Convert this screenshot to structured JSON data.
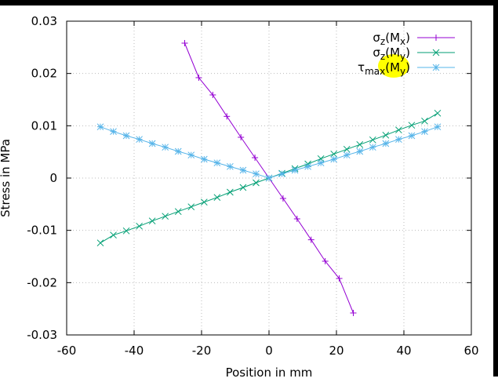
{
  "chart_data": {
    "type": "line",
    "title": "",
    "xlabel": "Position in mm",
    "ylabel": "Stress in MPa",
    "xlim": [
      -60,
      60
    ],
    "ylim": [
      -0.03,
      0.03
    ],
    "xticks": [
      -60,
      -40,
      -20,
      0,
      20,
      40,
      60
    ],
    "xtick_labels": [
      "-60",
      "-40",
      "-20",
      "0",
      "20",
      "40",
      "60"
    ],
    "yticks": [
      -0.03,
      -0.02,
      -0.01,
      0,
      0.01,
      0.02,
      0.03
    ],
    "ytick_labels": [
      "-0.03",
      "-0.02",
      "-0.01",
      "0",
      "0.01",
      "0.02",
      "0.03"
    ],
    "grid": true,
    "legend_position": "top-right",
    "series": [
      {
        "name": "σz(Mx)",
        "label_main": "σ",
        "label_sub1": "z",
        "label_mid": "(M",
        "label_sub2": "x",
        "label_end": ")",
        "color": "#9400d3",
        "marker": "plus",
        "x": [
          -25,
          -20.83,
          -16.67,
          -12.5,
          -8.33,
          -4.17,
          0,
          4.17,
          8.33,
          12.5,
          16.67,
          20.83,
          25
        ],
        "y": [
          0.0258,
          0.0192,
          0.0159,
          0.0118,
          0.0078,
          0.0039,
          0,
          -0.0039,
          -0.0078,
          -0.0118,
          -0.0159,
          -0.0192,
          -0.0258
        ]
      },
      {
        "name": "σz(My)",
        "label_main": "σ",
        "label_sub1": "z",
        "label_mid": "(M",
        "label_sub2": "y",
        "label_end": ")",
        "color": "#009e73",
        "marker": "cross",
        "x": [
          -50,
          -46.15,
          -42.31,
          -38.46,
          -34.62,
          -30.77,
          -26.92,
          -23.08,
          -19.23,
          -15.38,
          -11.54,
          -7.69,
          -3.85,
          0,
          3.85,
          7.69,
          11.54,
          15.38,
          19.23,
          23.08,
          26.92,
          30.77,
          34.62,
          38.46,
          42.31,
          46.15,
          50
        ],
        "y": [
          -0.0124,
          -0.0109,
          -0.0101,
          -0.0092,
          -0.0082,
          -0.0073,
          -0.0064,
          -0.0055,
          -0.0046,
          -0.0037,
          -0.0027,
          -0.0018,
          -0.0009,
          0,
          0.0009,
          0.0018,
          0.0027,
          0.0037,
          0.0046,
          0.0055,
          0.0064,
          0.0073,
          0.0082,
          0.0092,
          0.0101,
          0.0109,
          0.0124
        ]
      },
      {
        "name": "τmax(My)",
        "label_main": "τ",
        "label_sub1": "max",
        "label_mid": "(M",
        "label_sub2": "y",
        "label_end": ")",
        "color": "#56b4e9",
        "marker": "star",
        "x": [
          -50,
          -46.15,
          -42.31,
          -38.46,
          -34.62,
          -30.77,
          -26.92,
          -23.08,
          -19.23,
          -15.38,
          -11.54,
          -7.69,
          -3.85,
          0,
          3.85,
          7.69,
          11.54,
          15.38,
          19.23,
          23.08,
          26.92,
          30.77,
          34.62,
          38.46,
          42.31,
          46.15,
          50
        ],
        "y": [
          0.0098,
          0.0089,
          0.0081,
          0.0074,
          0.0066,
          0.0059,
          0.0051,
          0.0044,
          0.0036,
          0.0029,
          0.0022,
          0.0015,
          0.0008,
          0,
          0.0008,
          0.0015,
          0.0022,
          0.0029,
          0.0036,
          0.0044,
          0.0051,
          0.0059,
          0.0066,
          0.0074,
          0.0081,
          0.0089,
          0.0098
        ]
      }
    ],
    "highlight_color": "#ffff00"
  }
}
